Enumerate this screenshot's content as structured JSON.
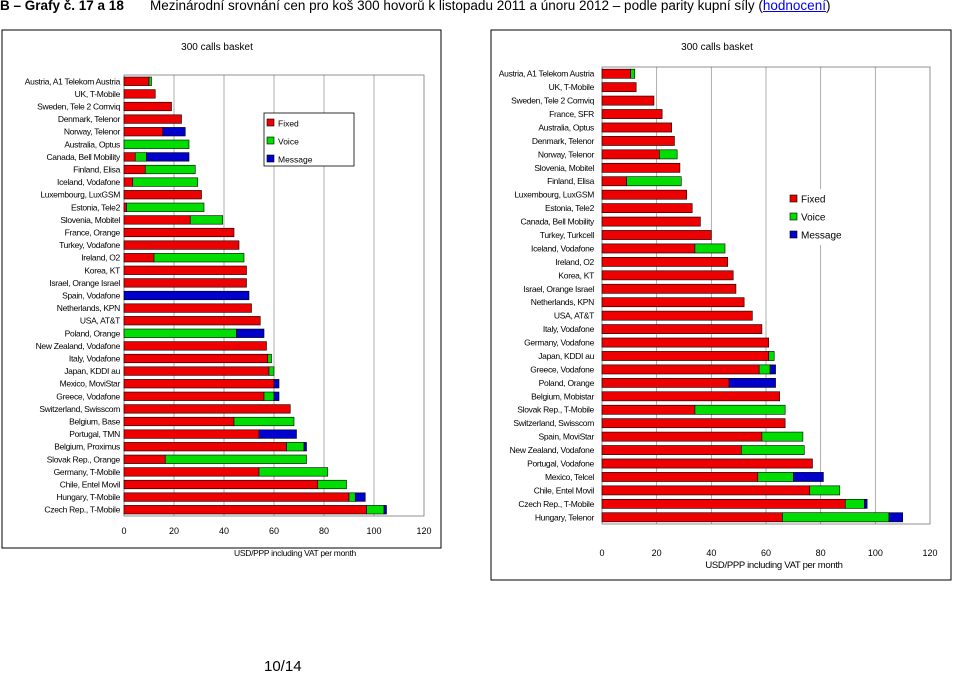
{
  "header": {
    "prefix": "B – Grafy č. 17 a 18",
    "title": "Mezinárodní srovnání cen pro koš 300 hovorů k listopadu 2011 a únoru 2012 – podle parity kupní síly (",
    "link": "hodnocení",
    "suffix": ")"
  },
  "page_number": "10/14",
  "colors": {
    "fixed": "#ee0000",
    "voice": "#00dd00",
    "message": "#0000cc",
    "border": "#000000"
  },
  "chart_data": [
    {
      "type": "bar",
      "orientation": "horizontal",
      "stacked": true,
      "title": "300 calls basket",
      "xlabel": "USD/PPP including VAT per month",
      "ylabel": "",
      "xlim": [
        0,
        120
      ],
      "xticks": [
        "0",
        "20",
        "40",
        "60",
        "80",
        "100",
        "120"
      ],
      "grid": true,
      "legend": [
        "Fixed",
        "Voice",
        "Message"
      ],
      "legend_position": "top-right",
      "categories": [
        "Austria, A1 Telekom Austria",
        "UK, T-Mobile",
        "Sweden, Tele 2 Comviq",
        "Denmark, Telenor",
        "Norway, Telenor",
        "Australia, Optus",
        "Canada, Bell Mobility",
        "Finland, Elisa",
        "Iceland, Vodafone",
        "Luxembourg, LuxGSM",
        "Estonia, Tele2",
        "Slovenia, Mobitel",
        "France, Orange",
        "Turkey, Vodafone",
        "Ireland, O2",
        "Korea, KT",
        "Israel, Orange Israel",
        "Spain, Vodafone",
        "Netherlands, KPN",
        "USA, AT&T",
        "Poland, Orange",
        "New Zealand, Vodafone",
        "Italy, Vodafone",
        "Japan, KDDI au",
        "Mexico, MoviStar",
        "Greece, Vodafone",
        "Switzerland, Swisscom",
        "Belgium, Base",
        "Portugal, TMN",
        "Belgium, Proximus",
        "Slovak Rep., Orange",
        "Germany, T-Mobile",
        "Chile, Entel Movil",
        "Hungary, T-Mobile",
        "Czech Rep., T-Mobile"
      ],
      "series": [
        {
          "name": "Fixed",
          "values": [
            10,
            12.5,
            19,
            23,
            15.5,
            0,
            4.5,
            8.5,
            3.5,
            31,
            1,
            26.5,
            44,
            46,
            12,
            49,
            49,
            0,
            51,
            54.5,
            0,
            57,
            57.5,
            58,
            60,
            56,
            66.5,
            44,
            54,
            65,
            16.5,
            54,
            77.5,
            90,
            97
          ]
        },
        {
          "name": "Voice",
          "values": [
            1,
            0,
            0,
            0,
            0,
            26,
            4.5,
            20,
            26,
            0,
            31,
            13,
            0,
            0,
            36,
            0,
            0,
            0,
            0,
            0,
            45,
            0,
            1.5,
            2,
            0,
            4,
            0,
            24,
            0,
            7,
            56.5,
            27.5,
            11.5,
            2.5,
            7
          ]
        },
        {
          "name": "Message",
          "values": [
            0,
            0,
            0,
            0,
            9,
            0,
            17,
            0,
            0,
            0,
            0,
            0,
            0,
            0,
            0,
            0,
            0,
            50,
            0,
            0,
            11,
            0,
            0,
            0,
            2,
            2,
            0,
            0,
            15,
            1,
            0,
            0,
            0,
            4,
            1
          ]
        }
      ]
    },
    {
      "type": "bar",
      "orientation": "horizontal",
      "stacked": true,
      "title": "300 calls basket",
      "xlabel": "USD/PPP including VAT per month",
      "ylabel": "",
      "xlim": [
        0,
        120
      ],
      "xticks": [
        "0",
        "20",
        "40",
        "60",
        "80",
        "100",
        "120"
      ],
      "grid": true,
      "legend": [
        "Fixed",
        "Voice",
        "Message"
      ],
      "legend_position": "top-right",
      "categories": [
        "Austria, A1 Telekom Austria",
        "UK, T-Mobile",
        "Sweden, Tele 2 Comviq",
        "France, SFR",
        "Australia, Optus",
        "Denmark, Telenor",
        "Norway, Telenor",
        "Slovenia, Mobitel",
        "Finland, Elisa",
        "Luxembourg, LuxGSM",
        "Estonia, Tele2",
        "Canada, Bell Mobility",
        "Turkey, Turkcell",
        "Iceland, Vodafone",
        "Ireland, O2",
        "Korea, KT",
        "Israel, Orange Israel",
        "Netherlands, KPN",
        "USA, AT&T",
        "Italy, Vodafone",
        "Germany, Vodafone",
        "Japan, KDDI au",
        "Greece, Vodafone",
        "Poland, Orange",
        "Belgium, Mobistar",
        "Slovak Rep., T-Mobile",
        "Switzerland, Swisscom",
        "Spain, MoviStar",
        "New Zealand, Vodafone",
        "Portugal, Vodafone",
        "Mexico, Telcel",
        "Chile, Entel Movil",
        "Czech Rep., T-Mobile",
        "Hungary, Telenor"
      ],
      "series": [
        {
          "name": "Fixed",
          "values": [
            10.5,
            12.5,
            19,
            22,
            25.5,
            26.5,
            21,
            28.5,
            9,
            31,
            33,
            36,
            40,
            34,
            46,
            48,
            49,
            52,
            55,
            58.5,
            61,
            61,
            57.5,
            46.5,
            65,
            34,
            67,
            58.5,
            51,
            77,
            57,
            76,
            89,
            66
          ]
        },
        {
          "name": "Voice",
          "values": [
            1.5,
            0,
            0,
            0,
            0,
            0,
            6.5,
            0,
            20,
            0,
            0,
            0,
            0,
            11,
            0,
            0,
            0,
            0,
            0,
            0,
            0,
            2,
            4,
            0,
            0,
            33,
            0,
            15,
            23,
            0,
            13,
            11,
            7,
            39
          ]
        },
        {
          "name": "Message",
          "values": [
            0,
            0,
            0,
            0,
            0,
            0,
            0,
            0,
            0,
            0,
            0,
            0,
            0,
            0,
            0,
            0,
            0,
            0,
            0,
            0,
            0,
            0,
            2,
            17,
            0,
            0,
            0,
            0,
            0,
            0,
            11,
            0,
            1,
            5
          ]
        }
      ]
    }
  ]
}
